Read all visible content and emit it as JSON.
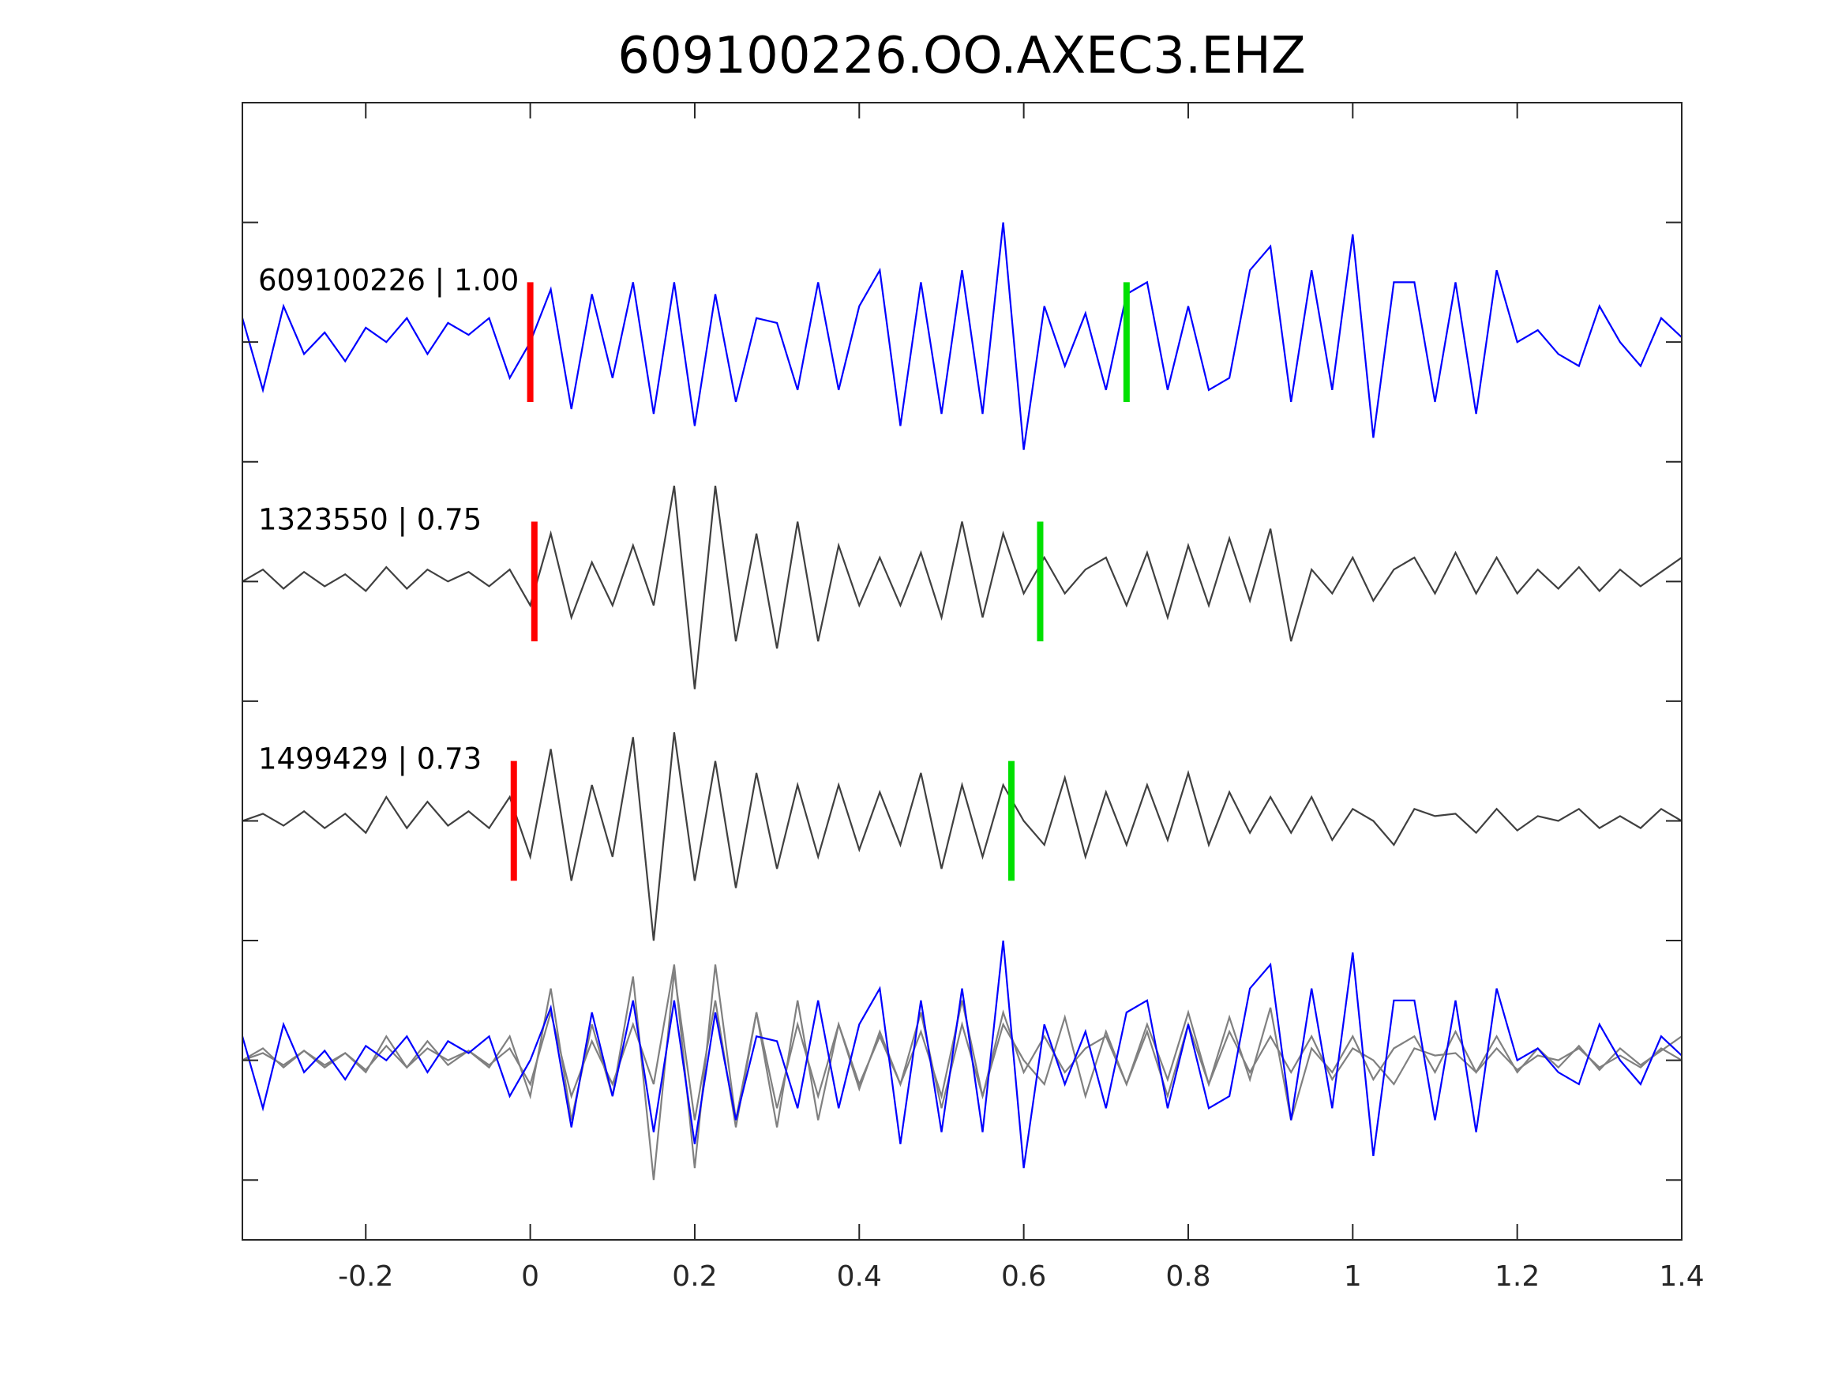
{
  "chart_data": {
    "type": "line",
    "title": "609100226.OO.AXEC3.EHZ",
    "xlabel": "",
    "ylabel": "",
    "xlim": [
      -0.35,
      1.4
    ],
    "ylim": [
      -0.75,
      4.0
    ],
    "xticks": [
      -0.2,
      0,
      0.2,
      0.4,
      0.6,
      0.8,
      1,
      1.2,
      1.4
    ],
    "xtick_labels": [
      "-0.2",
      "0",
      "0.2",
      "0.4",
      "0.6",
      "0.8",
      "1",
      "1.2",
      "1.4"
    ],
    "yticks": [
      -0.5,
      0,
      0.5,
      1,
      1.5,
      2,
      2.5,
      3,
      3.5
    ],
    "grid": false,
    "t_start": -0.35,
    "dt": 0.025,
    "colors": {
      "main": "#0000ff",
      "template": "#404040",
      "overlay": "#808080",
      "p_pick": "#ff0000",
      "s_pick": "#00e000"
    },
    "series": [
      {
        "name": "609100226 | 1.00",
        "offset": 3,
        "color": "#0000ff",
        "p_pick": 0.0,
        "s_pick": 0.725,
        "values": [
          0.1,
          -0.2,
          0.15,
          -0.05,
          0.04,
          -0.08,
          0.06,
          0.0,
          0.1,
          -0.05,
          0.08,
          0.03,
          0.1,
          -0.15,
          0.0,
          0.22,
          -0.28,
          0.2,
          -0.15,
          0.25,
          -0.3,
          0.25,
          -0.35,
          0.2,
          -0.25,
          0.1,
          0.08,
          -0.2,
          0.25,
          -0.2,
          0.15,
          0.3,
          -0.35,
          0.25,
          -0.3,
          0.3,
          -0.3,
          0.5,
          -0.45,
          0.15,
          -0.1,
          0.12,
          -0.2,
          0.2,
          0.25,
          -0.2,
          0.15,
          -0.2,
          -0.15,
          0.3,
          0.4,
          -0.25,
          0.3,
          -0.2,
          0.45,
          -0.4,
          0.25,
          0.25,
          -0.25,
          0.25,
          -0.3,
          0.3,
          0.0,
          0.05,
          -0.05,
          -0.1,
          0.15,
          0.0,
          -0.1,
          0.1,
          0.02
        ]
      },
      {
        "name": "1323550 | 0.75",
        "offset": 2,
        "color": "#404040",
        "p_pick": 0.005,
        "s_pick": 0.62,
        "values": [
          0.0,
          0.05,
          -0.03,
          0.04,
          -0.02,
          0.03,
          -0.04,
          0.06,
          -0.03,
          0.05,
          0.0,
          0.04,
          -0.02,
          0.05,
          -0.1,
          0.2,
          -0.15,
          0.08,
          -0.1,
          0.15,
          -0.1,
          0.4,
          -0.45,
          0.4,
          -0.25,
          0.2,
          -0.28,
          0.25,
          -0.25,
          0.15,
          -0.1,
          0.1,
          -0.1,
          0.12,
          -0.15,
          0.25,
          -0.15,
          0.2,
          -0.05,
          0.1,
          -0.05,
          0.05,
          0.1,
          -0.1,
          0.12,
          -0.15,
          0.15,
          -0.1,
          0.18,
          -0.08,
          0.22,
          -0.25,
          0.05,
          -0.05,
          0.1,
          -0.08,
          0.05,
          0.1,
          -0.05,
          0.12,
          -0.05,
          0.1,
          -0.05,
          0.05,
          -0.03,
          0.06,
          -0.04,
          0.05,
          -0.02,
          0.04,
          0.1
        ]
      },
      {
        "name": "1499429 | 0.73",
        "offset": 1,
        "color": "#404040",
        "p_pick": -0.02,
        "s_pick": 0.585,
        "values": [
          0.0,
          0.03,
          -0.02,
          0.04,
          -0.03,
          0.03,
          -0.05,
          0.1,
          -0.03,
          0.08,
          -0.02,
          0.04,
          -0.03,
          0.1,
          -0.15,
          0.3,
          -0.25,
          0.15,
          -0.15,
          0.35,
          -0.5,
          0.37,
          -0.25,
          0.25,
          -0.28,
          0.2,
          -0.2,
          0.15,
          -0.15,
          0.15,
          -0.12,
          0.12,
          -0.1,
          0.2,
          -0.2,
          0.15,
          -0.15,
          0.15,
          0.0,
          -0.1,
          0.18,
          -0.15,
          0.12,
          -0.1,
          0.15,
          -0.08,
          0.2,
          -0.1,
          0.12,
          -0.05,
          0.1,
          -0.05,
          0.1,
          -0.08,
          0.05,
          0.0,
          -0.1,
          0.05,
          0.02,
          0.03,
          -0.05,
          0.05,
          -0.04,
          0.02,
          0.0,
          0.05,
          -0.03,
          0.02,
          -0.03,
          0.05,
          0.0
        ]
      }
    ],
    "overlay": {
      "offset": 0,
      "description_label": ""
    }
  }
}
